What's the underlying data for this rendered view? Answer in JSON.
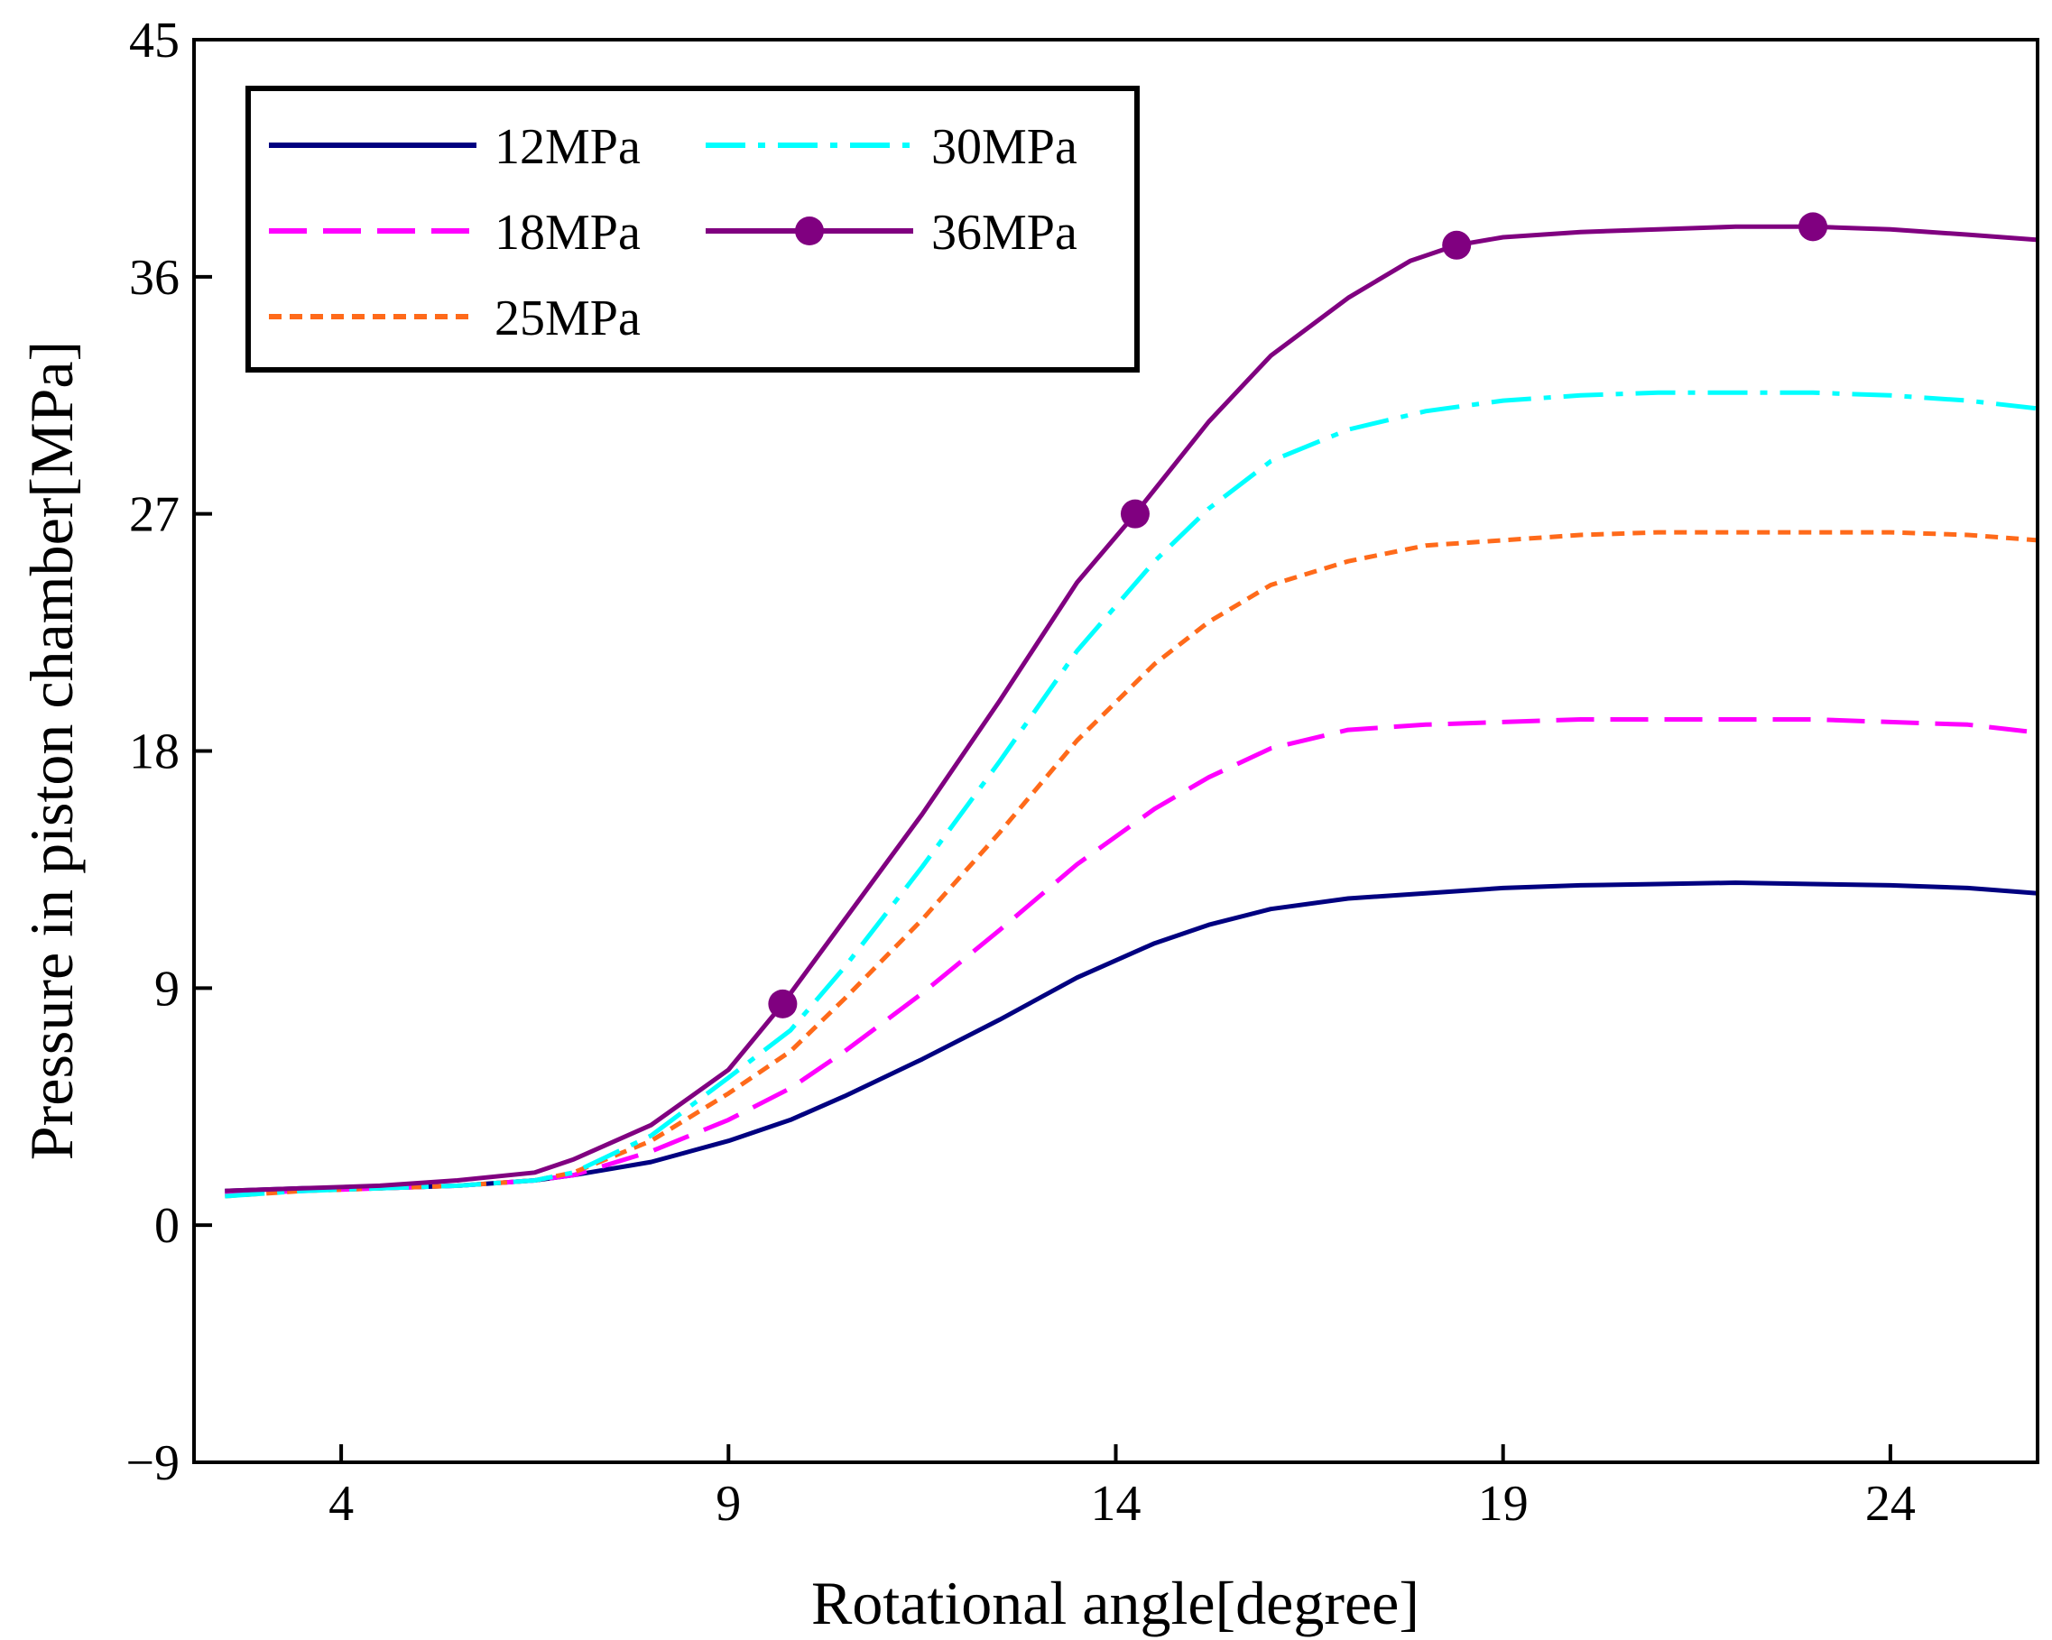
{
  "chart_data": {
    "type": "line",
    "title": "",
    "xlabel": "Rotational angle[degree]",
    "ylabel": "Pressure in piston chamber[MPa]",
    "xlim": [
      2.1,
      25.9
    ],
    "ylim": [
      -9,
      45
    ],
    "xticks": [
      4,
      9,
      14,
      19,
      24
    ],
    "yticks": [
      -9,
      0,
      9,
      18,
      27,
      36,
      45
    ],
    "xtick_labels": [
      "4",
      "9",
      "14",
      "19",
      "24"
    ],
    "ytick_labels": [
      "−9",
      "0",
      "9",
      "18",
      "27",
      "36",
      "45"
    ],
    "grid": false,
    "legend_position": "top-left",
    "series": [
      {
        "name": "12MPa",
        "color": "#000080",
        "style": "solid",
        "markers": [],
        "x": [
          2.5,
          3.5,
          4.5,
          5.5,
          6.5,
          7.0,
          8.0,
          9.0,
          9.8,
          10.5,
          11.5,
          12.5,
          13.5,
          14.5,
          15.2,
          16.0,
          17.0,
          18.0,
          19.0,
          20.0,
          21.0,
          22.0,
          23.0,
          24.0,
          25.0,
          25.9
        ],
        "values": [
          1.3,
          1.4,
          1.4,
          1.5,
          1.7,
          1.9,
          2.4,
          3.2,
          4.0,
          4.9,
          6.3,
          7.8,
          9.4,
          10.7,
          11.4,
          12.0,
          12.4,
          12.6,
          12.8,
          12.9,
          12.95,
          13.0,
          12.95,
          12.9,
          12.8,
          12.6
        ]
      },
      {
        "name": "18MPa",
        "color": "#FF00FF",
        "style": "longdash",
        "markers": [],
        "x": [
          2.5,
          3.5,
          4.5,
          5.5,
          6.5,
          7.0,
          8.0,
          9.0,
          9.8,
          10.5,
          11.5,
          12.5,
          13.5,
          14.5,
          15.2,
          16.0,
          17.0,
          18.0,
          19.0,
          20.0,
          21.0,
          22.0,
          23.0,
          24.0,
          25.0,
          25.9
        ],
        "values": [
          1.2,
          1.3,
          1.4,
          1.5,
          1.7,
          1.9,
          2.8,
          4.0,
          5.2,
          6.6,
          8.8,
          11.2,
          13.7,
          15.8,
          17.0,
          18.1,
          18.8,
          19.0,
          19.1,
          19.2,
          19.2,
          19.2,
          19.2,
          19.1,
          19.0,
          18.7
        ]
      },
      {
        "name": "25MPa",
        "color": "#FF6A1A",
        "style": "shortdash",
        "markers": [],
        "x": [
          2.5,
          3.5,
          4.5,
          5.5,
          6.5,
          7.0,
          8.0,
          9.0,
          9.8,
          10.5,
          11.5,
          12.5,
          13.5,
          14.5,
          15.2,
          16.0,
          17.0,
          18.0,
          19.0,
          20.0,
          21.0,
          22.0,
          23.0,
          24.0,
          25.0,
          25.9
        ],
        "values": [
          1.1,
          1.3,
          1.4,
          1.5,
          1.7,
          2.0,
          3.2,
          5.0,
          6.6,
          8.6,
          11.6,
          14.9,
          18.4,
          21.3,
          22.9,
          24.3,
          25.2,
          25.8,
          26.0,
          26.2,
          26.3,
          26.3,
          26.3,
          26.3,
          26.2,
          26.0
        ]
      },
      {
        "name": "30MPa",
        "color": "#00FFFF",
        "style": "dashdot",
        "markers": [],
        "x": [
          2.5,
          3.5,
          4.5,
          5.5,
          6.5,
          7.0,
          8.0,
          9.0,
          9.8,
          10.5,
          11.5,
          12.5,
          13.5,
          14.5,
          15.2,
          16.0,
          17.0,
          18.0,
          19.0,
          20.0,
          21.0,
          22.0,
          23.0,
          24.0,
          25.0,
          25.9
        ],
        "values": [
          1.1,
          1.3,
          1.4,
          1.5,
          1.7,
          2.0,
          3.4,
          5.6,
          7.4,
          9.8,
          13.6,
          17.6,
          21.8,
          25.2,
          27.2,
          29.0,
          30.2,
          30.9,
          31.3,
          31.5,
          31.6,
          31.6,
          31.6,
          31.5,
          31.3,
          31.0
        ]
      },
      {
        "name": "36MPa",
        "color": "#800080",
        "style": "solid",
        "markers": [
          9.7,
          14.25,
          18.4,
          23.0
        ],
        "x": [
          2.5,
          3.5,
          4.5,
          5.5,
          6.5,
          7.0,
          8.0,
          9.0,
          9.7,
          10.5,
          11.5,
          12.5,
          13.5,
          14.25,
          15.2,
          16.0,
          17.0,
          17.8,
          18.4,
          19.0,
          20.0,
          21.0,
          22.0,
          23.0,
          24.0,
          25.0,
          25.9
        ],
        "values": [
          1.3,
          1.4,
          1.5,
          1.7,
          2.0,
          2.5,
          3.8,
          5.9,
          8.4,
          11.6,
          15.6,
          19.9,
          24.4,
          27.0,
          30.5,
          33.0,
          35.2,
          36.6,
          37.2,
          37.5,
          37.7,
          37.8,
          37.9,
          37.9,
          37.8,
          37.6,
          37.4
        ]
      }
    ]
  }
}
